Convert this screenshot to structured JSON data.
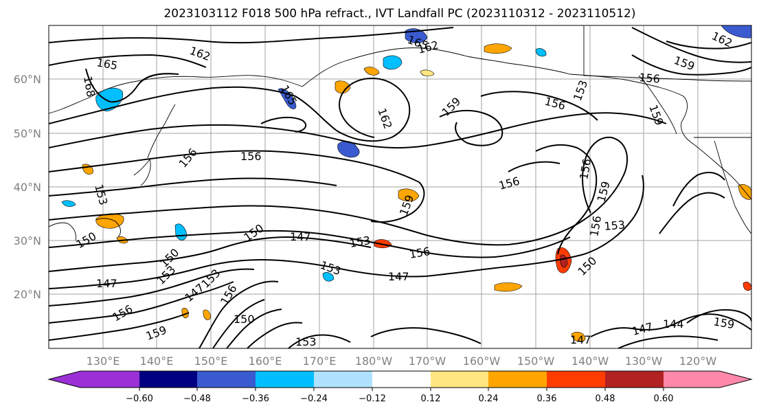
{
  "title": "2023103112 F018 500 hPa refract., IVT Landfall PC (2023110312 - 2023110512)",
  "lat_labels": [
    "60°N",
    "50°N",
    "40°N",
    "30°N",
    "20°N"
  ],
  "lon_labels": [
    "130°E",
    "140°E",
    "150°E",
    "160°E",
    "170°E",
    "180°W",
    "170°W",
    "160°W",
    "150°W",
    "140°W",
    "130°W",
    "120°W"
  ],
  "colorbar": {
    "colors": [
      "#9b30d6",
      "#000080",
      "#3a5bd0",
      "#00bfff",
      "#b0e2ff",
      "#ffffff",
      "#ffe680",
      "#ffa500",
      "#ff3d00",
      "#b22222",
      "#ff88aa"
    ],
    "ticks": [
      "−0.60",
      "−0.48",
      "−0.36",
      "−0.24",
      "−0.12",
      "0.12",
      "0.24",
      "0.36",
      "0.48",
      "0.60"
    ]
  },
  "contour_labels": [
    "162",
    "165",
    "168",
    "165",
    "162",
    "162",
    "159",
    "156",
    "153",
    "156",
    "159",
    "162",
    "159",
    "156",
    "156",
    "156",
    "153",
    "150",
    "147",
    "150",
    "147",
    "153",
    "153",
    "156",
    "147",
    "150",
    "159",
    "153",
    "156",
    "153",
    "156",
    "159",
    "147",
    "144",
    "159",
    "147",
    "156",
    "159",
    "147",
    "156",
    "153",
    "150",
    "150",
    "165",
    "153"
  ],
  "icons": {
    "map": "pacific-map",
    "colorbar": "colorbar"
  }
}
